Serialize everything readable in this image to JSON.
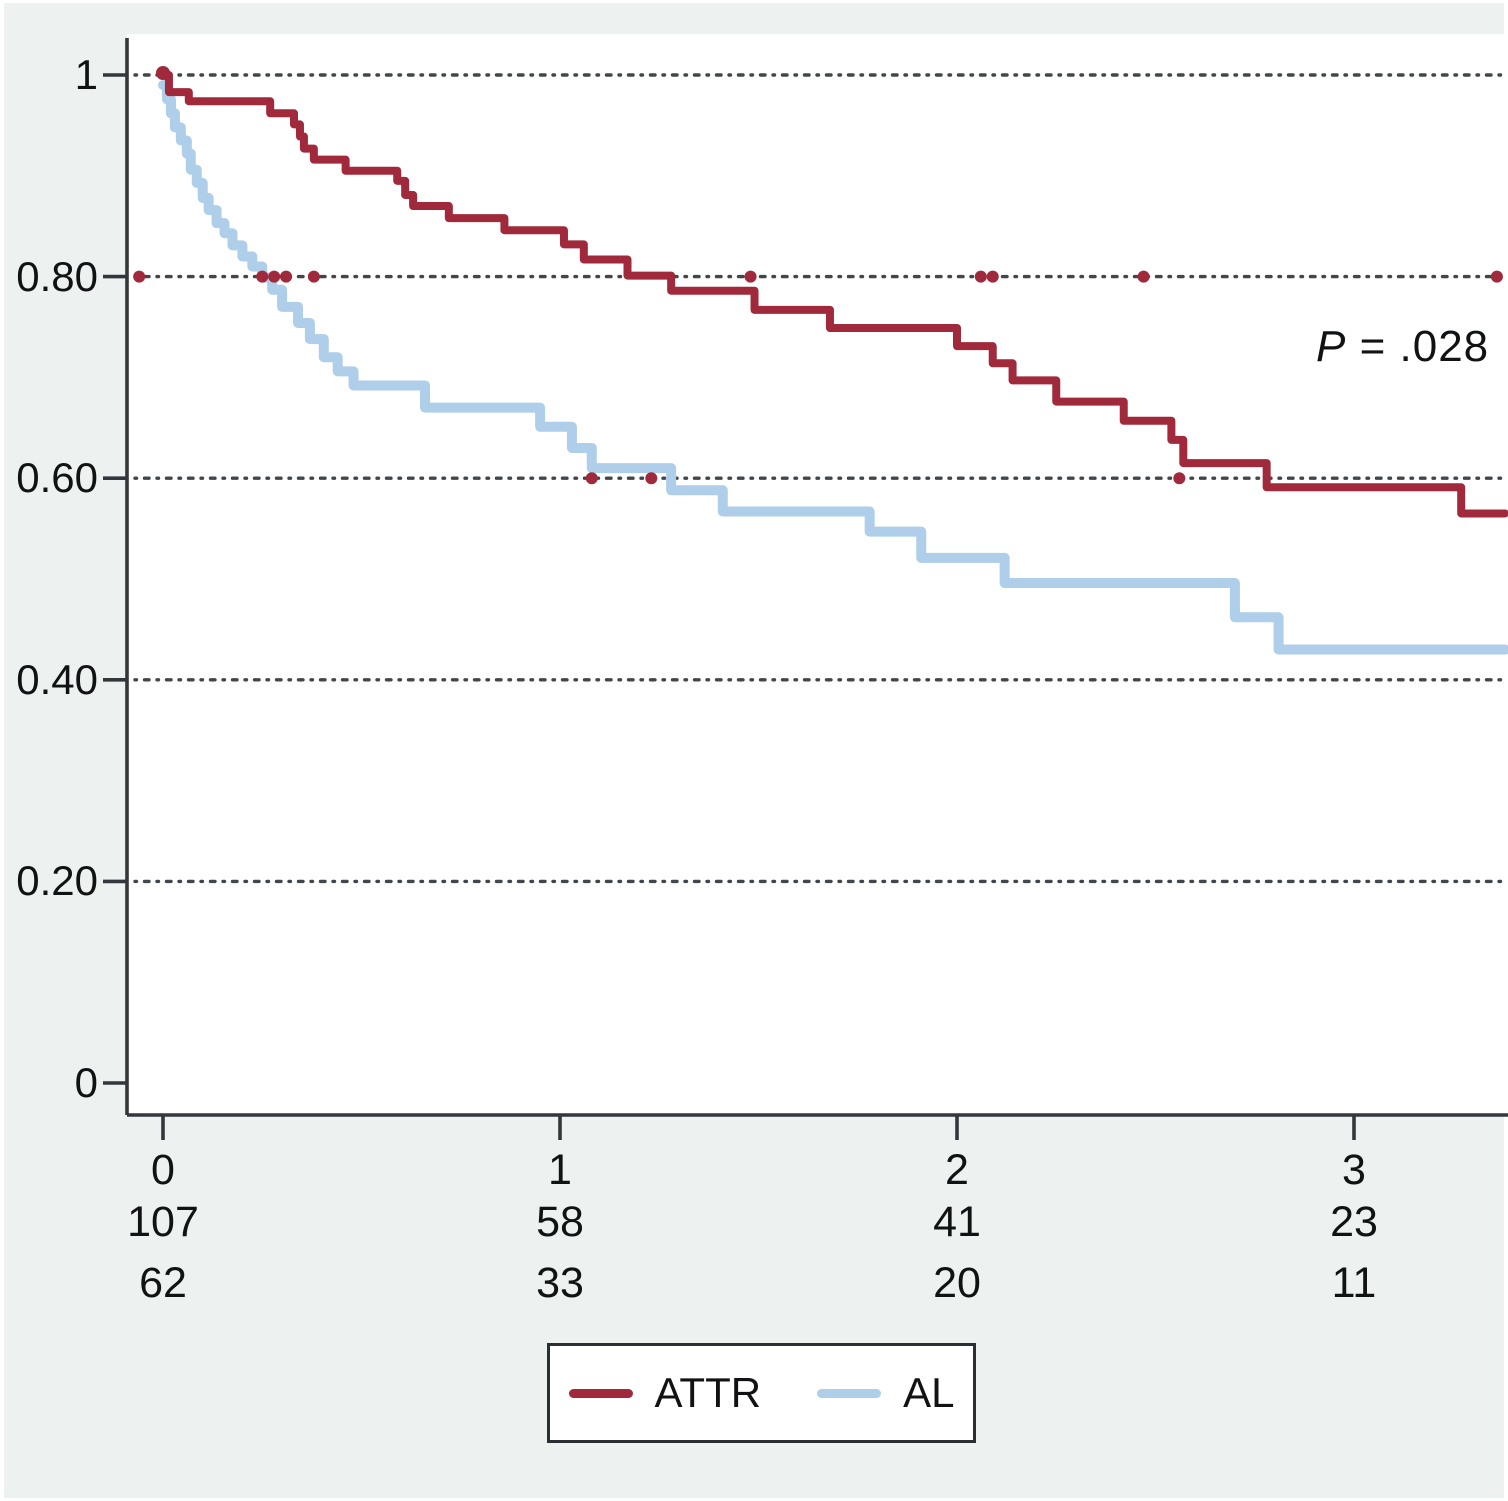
{
  "colors": {
    "background": "#edf1f0",
    "plot_background": "#ffffff",
    "axis": "#33373c",
    "grid_dots": "#2d3135",
    "text": "#101214",
    "legend_border": "#2b2f33",
    "attr_line": "#a02a3c",
    "al_line": "#aecee9"
  },
  "chart_data": {
    "type": "line",
    "subtype": "kaplan-meier-step",
    "title": "",
    "xlabel": "",
    "ylabel": "",
    "xlim": [
      0,
      3.39
    ],
    "ylim": [
      0,
      1
    ],
    "grid": "horizontal-dotted",
    "x_ticks": [
      "0",
      "1",
      "2",
      "3"
    ],
    "y_ticks": [
      {
        "value": 1.0,
        "label": "1"
      },
      {
        "value": 0.8,
        "label": "0.80"
      },
      {
        "value": 0.6,
        "label": "0.60"
      },
      {
        "value": 0.4,
        "label": "0.40"
      },
      {
        "value": 0.2,
        "label": "0.20"
      },
      {
        "value": 0.0,
        "label": "0"
      }
    ],
    "series": [
      {
        "name": "AL",
        "color": "#aecee9",
        "line_width": 10,
        "points": [
          [
            0,
            0.99
          ],
          [
            0.01,
            0.976
          ],
          [
            0.02,
            0.962
          ],
          [
            0.03,
            0.948
          ],
          [
            0.045,
            0.935
          ],
          [
            0.06,
            0.922
          ],
          [
            0.07,
            0.906
          ],
          [
            0.085,
            0.893
          ],
          [
            0.1,
            0.878
          ],
          [
            0.115,
            0.866
          ],
          [
            0.135,
            0.853
          ],
          [
            0.155,
            0.843
          ],
          [
            0.175,
            0.831
          ],
          [
            0.2,
            0.82
          ],
          [
            0.225,
            0.81
          ],
          [
            0.25,
            0.799
          ],
          [
            0.275,
            0.787
          ],
          [
            0.3,
            0.77
          ],
          [
            0.34,
            0.754
          ],
          [
            0.37,
            0.738
          ],
          [
            0.405,
            0.72
          ],
          [
            0.44,
            0.706
          ],
          [
            0.48,
            0.692
          ],
          [
            0.66,
            0.67
          ],
          [
            0.95,
            0.651
          ],
          [
            1.03,
            0.63
          ],
          [
            1.08,
            0.61
          ],
          [
            1.28,
            0.588
          ],
          [
            1.41,
            0.567
          ],
          [
            1.78,
            0.547
          ],
          [
            1.91,
            0.521
          ],
          [
            2.12,
            0.496
          ],
          [
            2.7,
            0.462
          ],
          [
            2.81,
            0.43
          ]
        ]
      },
      {
        "name": "ATTR",
        "color": "#a02a3c",
        "line_width": 8,
        "points": [
          [
            0,
            1.0
          ],
          [
            0.015,
            0.983
          ],
          [
            0.065,
            0.974
          ],
          [
            0.27,
            0.962
          ],
          [
            0.33,
            0.951
          ],
          [
            0.345,
            0.939
          ],
          [
            0.355,
            0.927
          ],
          [
            0.38,
            0.916
          ],
          [
            0.46,
            0.905
          ],
          [
            0.59,
            0.895
          ],
          [
            0.61,
            0.881
          ],
          [
            0.63,
            0.87
          ],
          [
            0.72,
            0.858
          ],
          [
            0.86,
            0.846
          ],
          [
            1.01,
            0.832
          ],
          [
            1.06,
            0.817
          ],
          [
            1.17,
            0.801
          ],
          [
            1.28,
            0.786
          ],
          [
            1.49,
            0.767
          ],
          [
            1.68,
            0.749
          ],
          [
            2.0,
            0.731
          ],
          [
            2.09,
            0.714
          ],
          [
            2.14,
            0.697
          ],
          [
            2.25,
            0.676
          ],
          [
            2.42,
            0.657
          ],
          [
            2.54,
            0.638
          ],
          [
            2.57,
            0.615
          ],
          [
            2.78,
            0.591
          ],
          [
            3.27,
            0.565
          ]
        ]
      }
    ],
    "censor_marks": [
      {
        "y": 0.8,
        "t": [
          -0.06,
          0.25,
          0.28,
          0.31,
          0.38,
          1.48,
          2.06,
          2.09,
          2.47,
          3.36
        ]
      },
      {
        "y": 0.6,
        "t": [
          1.08,
          1.23,
          2.56
        ]
      }
    ],
    "annotation": {
      "text": "P = .028",
      "italic_part": "P",
      "rest": " = .028"
    },
    "at_risk": {
      "times": [
        "0",
        "1",
        "2",
        "3"
      ],
      "rows": [
        {
          "name": "ATTR",
          "values": [
            "107",
            "58",
            "41",
            "23"
          ]
        },
        {
          "name": "AL",
          "values": [
            "62",
            "33",
            "20",
            "11"
          ]
        }
      ]
    },
    "legend": {
      "position": "bottom-center",
      "items": [
        {
          "label": "ATTR",
          "color": "#a02a3c"
        },
        {
          "label": "AL",
          "color": "#aecee9"
        }
      ]
    }
  }
}
